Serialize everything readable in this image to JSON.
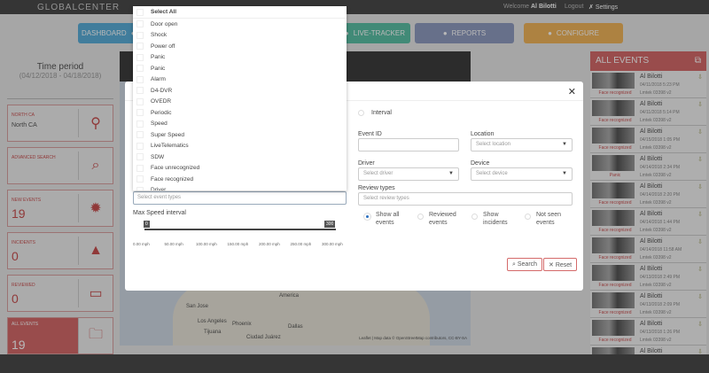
{
  "header": {
    "logo": "GLOBALCENTER",
    "welcome": "Welcome",
    "user": "Al Bilotti",
    "logout": "Logout",
    "settings": "Settings"
  },
  "nav": [
    {
      "label": "DASHBOARD",
      "color": "#5aaed8"
    },
    {
      "label": "LIVE-TRACKER",
      "color": "#5bbfa5"
    },
    {
      "label": "REPORTS",
      "color": "#8f9bbf"
    },
    {
      "label": "CONFIGURE",
      "color": "#f0b45a"
    }
  ],
  "left": {
    "time_label": "Time period",
    "time_range": "(04/12/2018 - 04/18/2018)",
    "cards": [
      {
        "label": "NORTH CA",
        "value": "North CA",
        "icon": "map-pin-icon"
      },
      {
        "label": "ADVANCED SEARCH",
        "value": "",
        "icon": "search-icon"
      },
      {
        "label": "NEW EVENTS",
        "value": "19",
        "icon": "alert-badge-icon"
      },
      {
        "label": "INCIDENTS",
        "value": "0",
        "icon": "warning-icon"
      },
      {
        "label": "REVIEWED",
        "value": "0",
        "icon": "monitor-icon"
      },
      {
        "label": "ALL EVENTS",
        "value": "19",
        "icon": "folder-icon"
      }
    ]
  },
  "map": {
    "labels": [
      "America",
      "San Jose",
      "Los Angeles",
      "Phoenix",
      "Tijuana",
      "Dallas",
      "Ciudad Juárez"
    ],
    "attribution": "Leaflet | Map data © OpenStreetMap contributors, CC-BY-SA"
  },
  "events_panel": {
    "title": "ALL EVENTS",
    "events": [
      {
        "name": "Al Bilotti",
        "date": "04/11/2018 5:23 PM",
        "device": "Lmtek 03398 v2",
        "type": "Face recognized"
      },
      {
        "name": "Al Bilotti",
        "date": "04/11/2018 5:14 PM",
        "device": "Lmtek 03398 v2",
        "type": "Face recognized"
      },
      {
        "name": "Al Bilotti",
        "date": "04/15/2018 1:05 PM",
        "device": "Lmtek 03398 v2",
        "type": "Face recognized"
      },
      {
        "name": "Al Bilotti",
        "date": "04/14/2018 2:34 PM",
        "device": "Lmtek 03398 v2",
        "type": "Panic"
      },
      {
        "name": "Al Bilotti",
        "date": "04/14/2018 2:20 PM",
        "device": "Lmtek 03398 v2",
        "type": "Face recognized"
      },
      {
        "name": "Al Bilotti",
        "date": "04/14/2018 1:44 PM",
        "device": "Lmtek 03398 v2",
        "type": "Face recognized"
      },
      {
        "name": "Al Bilotti",
        "date": "04/14/2018 11:58 AM",
        "device": "Lmtek 03398 v2",
        "type": "Face recognized"
      },
      {
        "name": "Al Bilotti",
        "date": "04/13/2018 2:49 PM",
        "device": "Lmtek 03398 v2",
        "type": "Face recognized"
      },
      {
        "name": "Al Bilotti",
        "date": "04/13/2018 2:09 PM",
        "device": "Lmtek 03398 v2",
        "type": "Face recognized"
      },
      {
        "name": "Al Bilotti",
        "date": "04/13/2018 1:26 PM",
        "device": "Lmtek 03398 v2",
        "type": "Face recognized"
      },
      {
        "name": "Al Bilotti",
        "date": "",
        "device": "",
        "type": ""
      }
    ]
  },
  "modal": {
    "interval": "Interval",
    "event_id": "Event ID",
    "event_id_value": "",
    "location": "Location",
    "location_ph": "Select location",
    "driver": "Driver",
    "driver_ph": "Select driver",
    "device": "Device",
    "device_ph": "Select device",
    "review_types": "Review types",
    "review_ph": "Select review types",
    "event_types_ph": "Select event types",
    "max_speed": "Max Speed interval",
    "speed_min": "0",
    "speed_max": "300",
    "ticks": [
      "0.00 mph",
      "50.00 mph",
      "100.00 mph",
      "150.00 mph",
      "200.00 mph",
      "250.00 mph",
      "300.00 mph"
    ],
    "radios": [
      {
        "label": "Show all events",
        "checked": true
      },
      {
        "label": "Reviewed events",
        "checked": false
      },
      {
        "label": "Show incidents",
        "checked": false
      },
      {
        "label": "Not seen events",
        "checked": false
      }
    ],
    "search": "Search",
    "reset": "Reset"
  },
  "dropdown": {
    "select_all": "Select All",
    "items": [
      "Door open",
      "Shock",
      "Power off",
      "Panic",
      "Panic",
      "Alarm",
      "D4-DVR",
      "OVEDR",
      "Periodic",
      "Speed",
      "Super Speed",
      "LiveTelematics",
      "SDW",
      "Face unrecognized",
      "Face recognized",
      "Driver"
    ]
  }
}
